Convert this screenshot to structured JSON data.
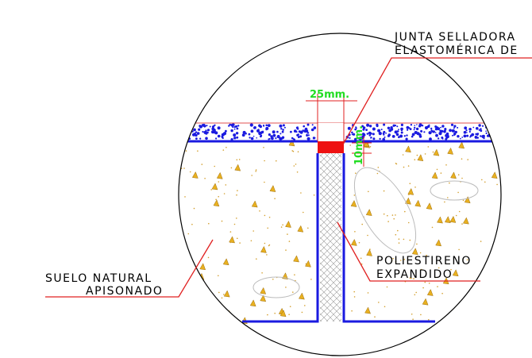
{
  "labels": {
    "seal_line1": "JUNTA SELLADORA",
    "seal_line2": "ELASTOMÉRICA DE",
    "width_dim": "25mm.",
    "depth_dim": "10mm.",
    "filler_line1": "POLIESTIRENO",
    "filler_line2": "EXPANDIDO",
    "soil_line1": "SUELO NATURAL",
    "soil_line2": "APISONADO"
  }
}
